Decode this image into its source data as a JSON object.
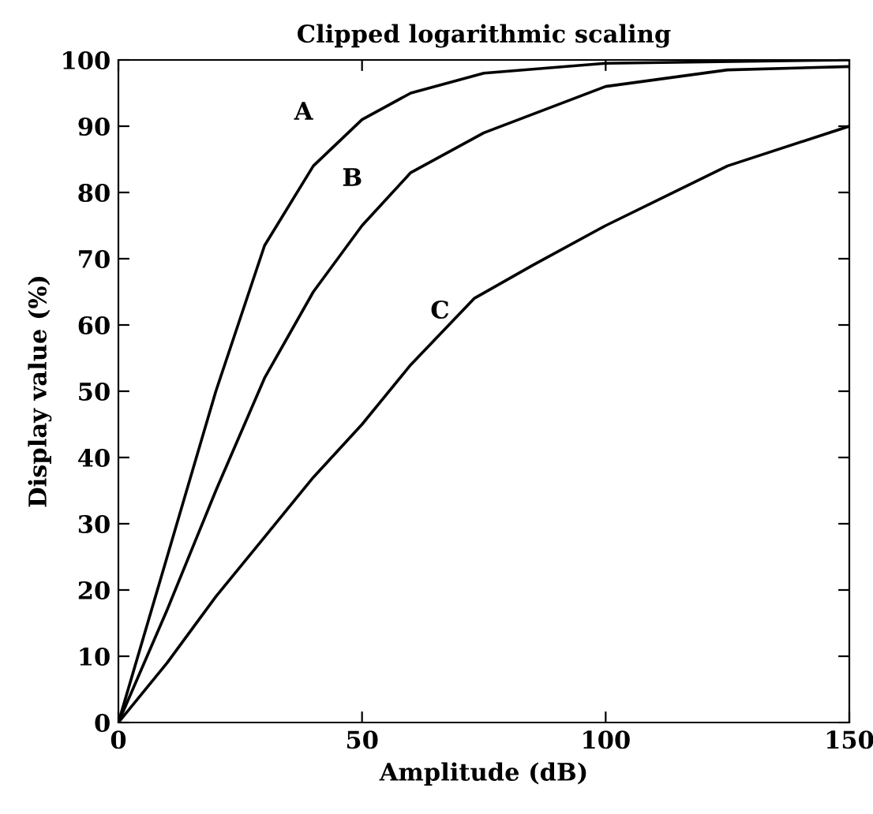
{
  "chart_data": {
    "type": "line",
    "title": "Clipped logarithmic scaling",
    "xlabel": "Amplitude (dB)",
    "ylabel": "Display value (%)",
    "xlim": [
      0,
      150
    ],
    "xticks": [
      0,
      50,
      100,
      150
    ],
    "ylim": [
      0,
      100
    ],
    "yticks": [
      0,
      10,
      20,
      30,
      40,
      50,
      60,
      70,
      80,
      90,
      100
    ],
    "grid": false,
    "legend": false,
    "marker": "none",
    "line_style": "solid",
    "series": [
      {
        "name": "A",
        "color": "#000000",
        "x": [
          0,
          10,
          20,
          30,
          40,
          50,
          60,
          75,
          100,
          150
        ],
        "values": [
          0,
          25,
          50,
          72,
          84,
          91,
          95,
          98,
          99.5,
          100
        ]
      },
      {
        "name": "B",
        "color": "#000000",
        "x": [
          0,
          10,
          20,
          30,
          40,
          50,
          60,
          75,
          100,
          125,
          150
        ],
        "values": [
          0,
          17,
          35,
          52,
          65,
          75,
          83,
          89,
          96,
          98.5,
          99
        ]
      },
      {
        "name": "C",
        "color": "#000000",
        "x": [
          0,
          10,
          20,
          30,
          40,
          50,
          60,
          73,
          85,
          100,
          125,
          150
        ],
        "values": [
          0,
          9,
          19,
          28,
          37,
          45,
          54,
          64,
          69,
          75,
          84,
          90
        ]
      }
    ]
  }
}
